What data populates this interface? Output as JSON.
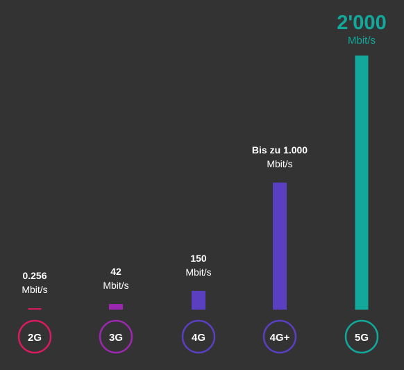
{
  "chart_data": {
    "type": "bar",
    "categories": [
      "2G",
      "3G",
      "4G",
      "4G+",
      "5G"
    ],
    "values": [
      0.256,
      42,
      150,
      1000,
      2000
    ],
    "unit": "Mbit/s",
    "value_labels": [
      "0.256",
      "42",
      "150",
      "Bis zu 1.000",
      "2'000"
    ],
    "colors": [
      "#d81b60",
      "#9c27b0",
      "#5a3fc0",
      "#5a3fc0",
      "#12a89c"
    ],
    "label_color": "#ffffff",
    "ylim": [
      0,
      2000
    ]
  }
}
